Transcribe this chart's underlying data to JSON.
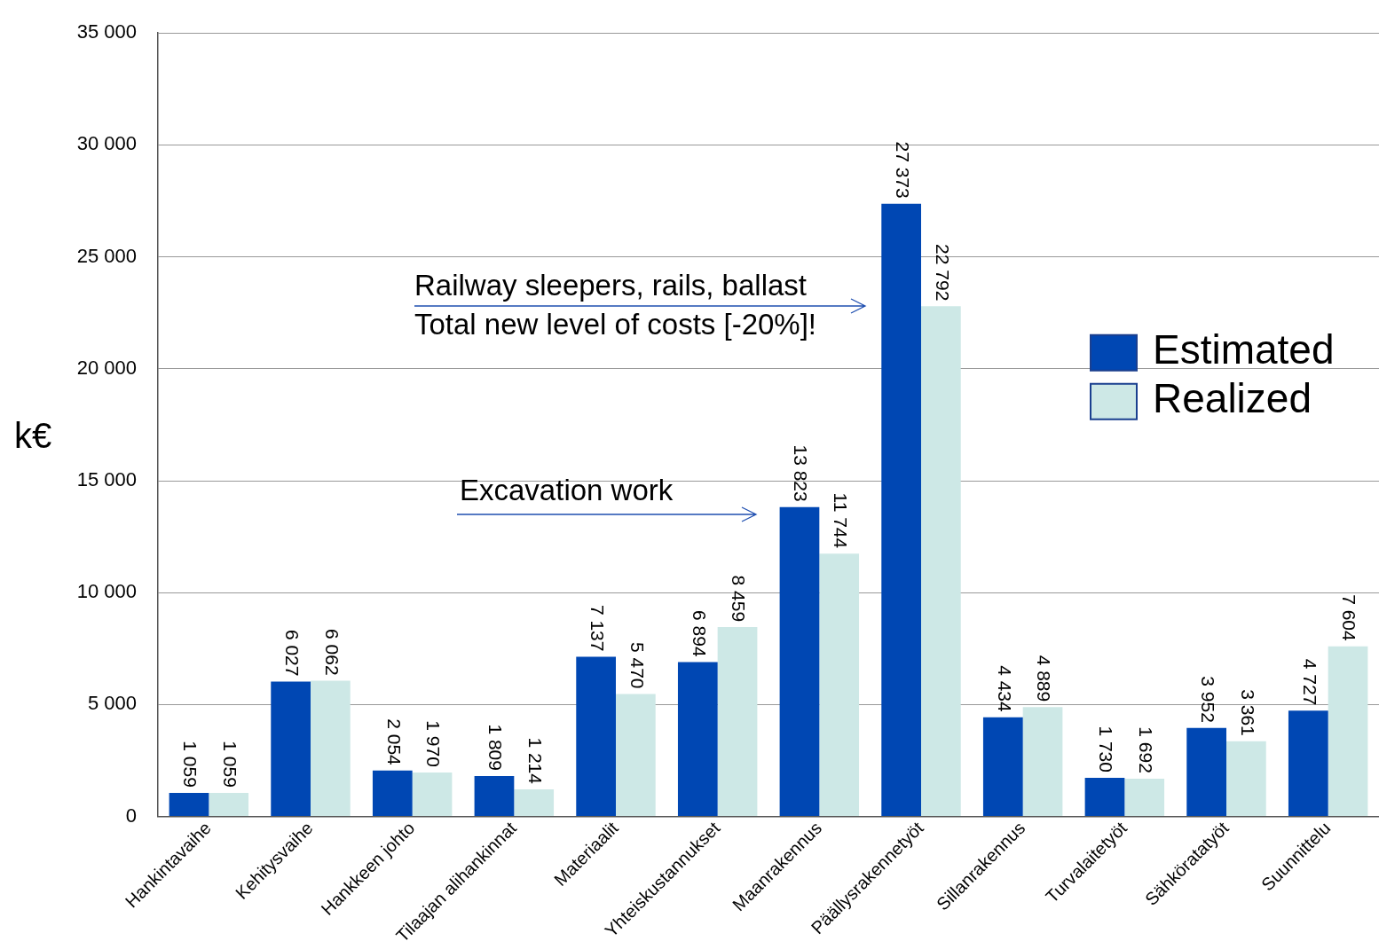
{
  "chart_data": {
    "type": "bar",
    "ylabel": "k€",
    "categories": [
      "Hankintavaihe",
      "Kehitysvaihe",
      "Hankkeen johto",
      "Tilaajan alihankinnat",
      "Materiaalit",
      "Yhteiskustannukset",
      "Maanrakennus",
      "Päällysrakennetyöt",
      "Sillanrakennus",
      "Turvalaitetyöt",
      "Sähköratatyöt",
      "Suunnittelu"
    ],
    "series": [
      {
        "name": "Estimated",
        "color": "#0047b3",
        "values": [
          1059,
          6027,
          2054,
          1809,
          7137,
          6894,
          13823,
          27373,
          4434,
          1730,
          3952,
          4727
        ]
      },
      {
        "name": "Realized",
        "color": "#cde8e6",
        "values": [
          1059,
          6062,
          1970,
          1214,
          5470,
          8459,
          11744,
          22792,
          4889,
          1692,
          3361,
          7604
        ]
      }
    ],
    "ylim": [
      0,
      35000
    ],
    "yticks": [
      {
        "value": 0,
        "label": "0"
      },
      {
        "value": 5000,
        "label": "5 000"
      },
      {
        "value": 10000,
        "label": "10 000"
      },
      {
        "value": 15000,
        "label": "15 000"
      },
      {
        "value": 20000,
        "label": "20 000"
      },
      {
        "value": 25000,
        "label": "25 000"
      },
      {
        "value": 30000,
        "label": "30 000"
      },
      {
        "value": 35000,
        "label": "35 000"
      }
    ],
    "grid": "y",
    "legend": "right",
    "data_labels": true,
    "annotations": [
      "Excavation work",
      "Railway sleepers, rails, ballast\nTotal new level of costs [-20%]!"
    ]
  }
}
